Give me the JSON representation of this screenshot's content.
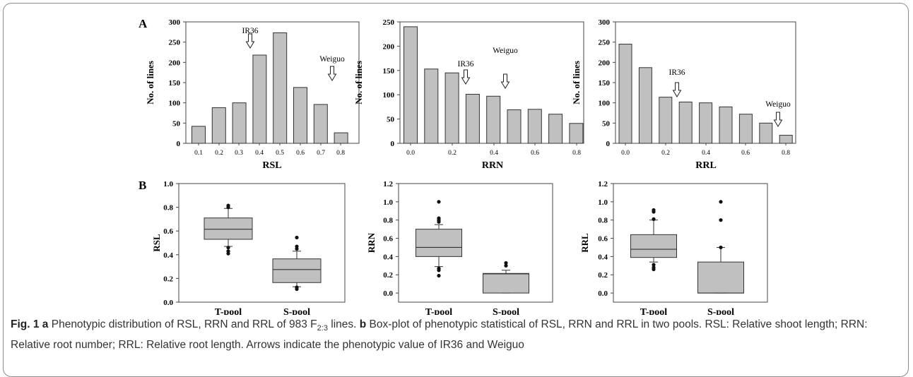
{
  "figure": {
    "panel_labels": [
      "A",
      "B"
    ],
    "caption": {
      "fig_label": "Fig. 1",
      "a_label": "a",
      "a_text_pre": "Phenotypic distribution of RSL, RRN and RRL of 983 F",
      "a_sub": "2:3",
      "a_text_post": "lines.",
      "b_label": "b",
      "b_text": "Box-plot of phenotypic statistical of RSL, RRN and RRL in two pools. RSL: Relative shoot length; RRN: Relative root number; RRL: Relative root length. Arrows indicate the phenotypic value of IR36 and Weiguo"
    }
  },
  "chart_data": [
    {
      "type": "bar",
      "panel": "A",
      "xlabel": "RSL",
      "ylabel": "No. of lines",
      "ylim": [
        0,
        300
      ],
      "yticks": [
        0,
        50,
        100,
        150,
        200,
        250,
        300
      ],
      "tick_labels": [
        "0.1",
        "0.2",
        "0.3",
        "0.4",
        "0.5",
        "0.6",
        "0.7",
        "0.8"
      ],
      "values": [
        42,
        88,
        100,
        218,
        273,
        138,
        96,
        26
      ],
      "annotations": [
        {
          "text": "IR36",
          "x_index": 3
        },
        {
          "text": "Weiguo",
          "x_index": 7
        }
      ]
    },
    {
      "type": "bar",
      "panel": "A",
      "xlabel": "RRN",
      "ylabel": "No. of lines",
      "ylim": [
        0,
        250
      ],
      "yticks": [
        0,
        50,
        100,
        150,
        200,
        250
      ],
      "tick_labels": [
        "0.0",
        "0.2",
        "0.4",
        "0.6",
        "0.8"
      ],
      "values": [
        240,
        153,
        145,
        101,
        97,
        69,
        70,
        60,
        41
      ],
      "annotations": [
        {
          "text": "IR36",
          "x_index": 3
        },
        {
          "text": "Weiguo",
          "x_index": 7
        }
      ]
    },
    {
      "type": "bar",
      "panel": "A",
      "xlabel": "RRL",
      "ylabel": "No. of lines",
      "ylim": [
        0,
        300
      ],
      "yticks": [
        0,
        50,
        100,
        150,
        200,
        250,
        300
      ],
      "tick_labels": [
        "0.0",
        "0.2",
        "0.4",
        "0.6",
        "0.8"
      ],
      "values": [
        245,
        187,
        114,
        102,
        100,
        90,
        72,
        50,
        20
      ],
      "annotations": [
        {
          "text": "IR36",
          "x_index": 3
        },
        {
          "text": "Weiguo",
          "x_index": 8
        }
      ]
    },
    {
      "type": "box",
      "panel": "B",
      "ylabel": "RSL",
      "ylim": [
        0,
        1.0
      ],
      "ytick_labels": [
        "0.0",
        "0.2",
        "0.4",
        "0.6",
        "0.8",
        "1.0"
      ],
      "categories": [
        "T-pool",
        "S-pool"
      ],
      "boxes": [
        {
          "q1": 0.53,
          "median": 0.615,
          "q3": 0.71,
          "whisker_low": 0.47,
          "whisker_high": 0.79,
          "outliers": [
            0.8,
            0.815,
            0.46,
            0.43,
            0.41
          ]
        },
        {
          "q1": 0.165,
          "median": 0.275,
          "q3": 0.365,
          "whisker_low": 0.13,
          "whisker_high": 0.43,
          "outliers": [
            0.545,
            0.47,
            0.45,
            0.125,
            0.11
          ]
        }
      ]
    },
    {
      "type": "box",
      "panel": "B",
      "ylabel": "RRN",
      "ylim": [
        -0.1,
        1.2
      ],
      "ytick_labels": [
        "0.0",
        "0.2",
        "0.4",
        "0.6",
        "0.8",
        "1.0",
        "1.2"
      ],
      "categories": [
        "T-pool",
        "S-pool"
      ],
      "boxes": [
        {
          "q1": 0.4,
          "median": 0.5,
          "q3": 0.7,
          "whisker_low": 0.29,
          "whisker_high": 0.75,
          "outliers": [
            1.0,
            0.82,
            0.8,
            0.78,
            0.27,
            0.25,
            0.19
          ]
        },
        {
          "q1": 0.0,
          "median": 0.21,
          "q3": 0.215,
          "whisker_low": 0.0,
          "whisker_high": 0.25,
          "outliers": [
            0.33,
            0.3
          ]
        }
      ]
    },
    {
      "type": "box",
      "panel": "B",
      "ylabel": "RRL",
      "ylim": [
        -0.1,
        1.2
      ],
      "ytick_labels": [
        "0.0",
        "0.2",
        "0.4",
        "0.6",
        "0.8",
        "1.0",
        "1.2"
      ],
      "categories": [
        "T-pool",
        "S-pool"
      ],
      "boxes": [
        {
          "q1": 0.39,
          "median": 0.48,
          "q3": 0.64,
          "whisker_low": 0.34,
          "whisker_high": 0.8,
          "outliers": [
            0.91,
            0.89,
            0.81,
            0.31,
            0.28,
            0.26
          ]
        },
        {
          "q1": 0.0,
          "median": 0.0,
          "q3": 0.34,
          "whisker_low": 0.0,
          "whisker_high": 0.5,
          "outliers": [
            1.0,
            0.8,
            0.5
          ]
        }
      ]
    }
  ]
}
